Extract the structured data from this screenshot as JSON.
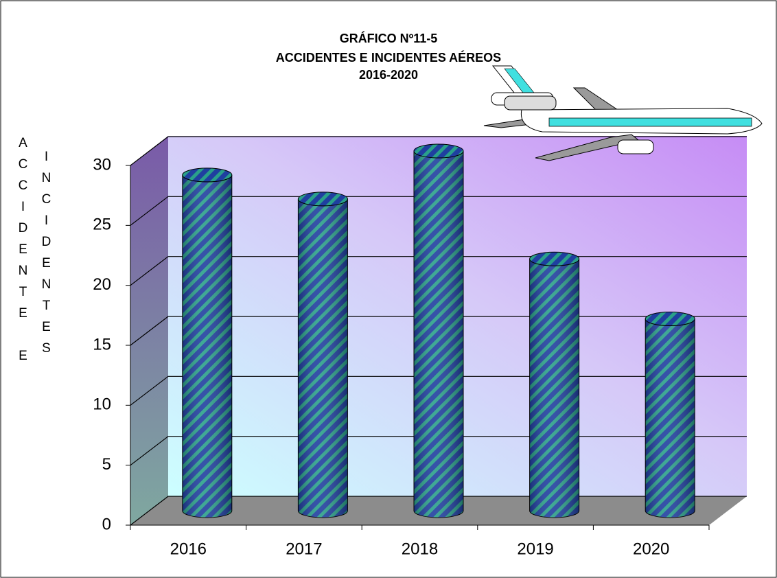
{
  "chart_data": {
    "type": "bar",
    "title": [
      "GRÁFICO Nº11-5",
      "ACCIDENTES E INCIDENTES AÉREOS",
      "2016-2020"
    ],
    "y_label": [
      "ACCIDENTE E",
      "INCIDENTES"
    ],
    "categories": [
      "2016",
      "2017",
      "2018",
      "2019",
      "2020"
    ],
    "values": [
      28,
      26,
      30,
      21,
      16
    ],
    "color": "#1f3fa0",
    "ylim": [
      0,
      30
    ],
    "yticks": [
      0,
      5,
      10,
      15,
      20,
      25,
      30
    ],
    "grid": true
  }
}
